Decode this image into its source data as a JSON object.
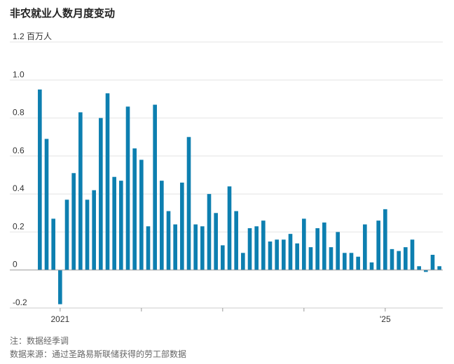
{
  "chart_data": {
    "type": "bar",
    "title": "非农就业人数月度变动",
    "ylabel_unit": "百万人",
    "ylim": [
      -0.2,
      1.2
    ],
    "yticks": [
      -0.2,
      0,
      0.2,
      0.4,
      0.6,
      0.8,
      1.0,
      1.2
    ],
    "ytick_labels": [
      "-0.2",
      "0",
      "0.2",
      "0.4",
      "0.6",
      "0.8",
      "1.0",
      "1.2"
    ],
    "x_labels": [
      {
        "text": "2021",
        "index": 3
      },
      {
        "text": "'25",
        "index": 51
      }
    ],
    "start": "2020-09",
    "color": "#0d7fb0",
    "grid": true,
    "values": [
      0.95,
      0.69,
      0.27,
      -0.18,
      0.37,
      0.51,
      0.83,
      0.37,
      0.42,
      0.8,
      0.93,
      0.49,
      0.47,
      0.86,
      0.64,
      0.58,
      0.23,
      0.87,
      0.47,
      0.31,
      0.24,
      0.46,
      0.7,
      0.24,
      0.23,
      0.4,
      0.3,
      0.13,
      0.44,
      0.31,
      0.09,
      0.22,
      0.23,
      0.26,
      0.15,
      0.16,
      0.16,
      0.19,
      0.14,
      0.27,
      0.12,
      0.22,
      0.25,
      0.12,
      0.2,
      0.09,
      0.09,
      0.07,
      0.24,
      0.04,
      0.26,
      0.32,
      0.11,
      0.1,
      0.12,
      0.16,
      0.02,
      -0.01,
      0.08,
      0.02
    ]
  },
  "footer": {
    "note": "注：数据经季调",
    "source": "数据来源：通过圣路易斯联储获得的劳工部数据"
  }
}
